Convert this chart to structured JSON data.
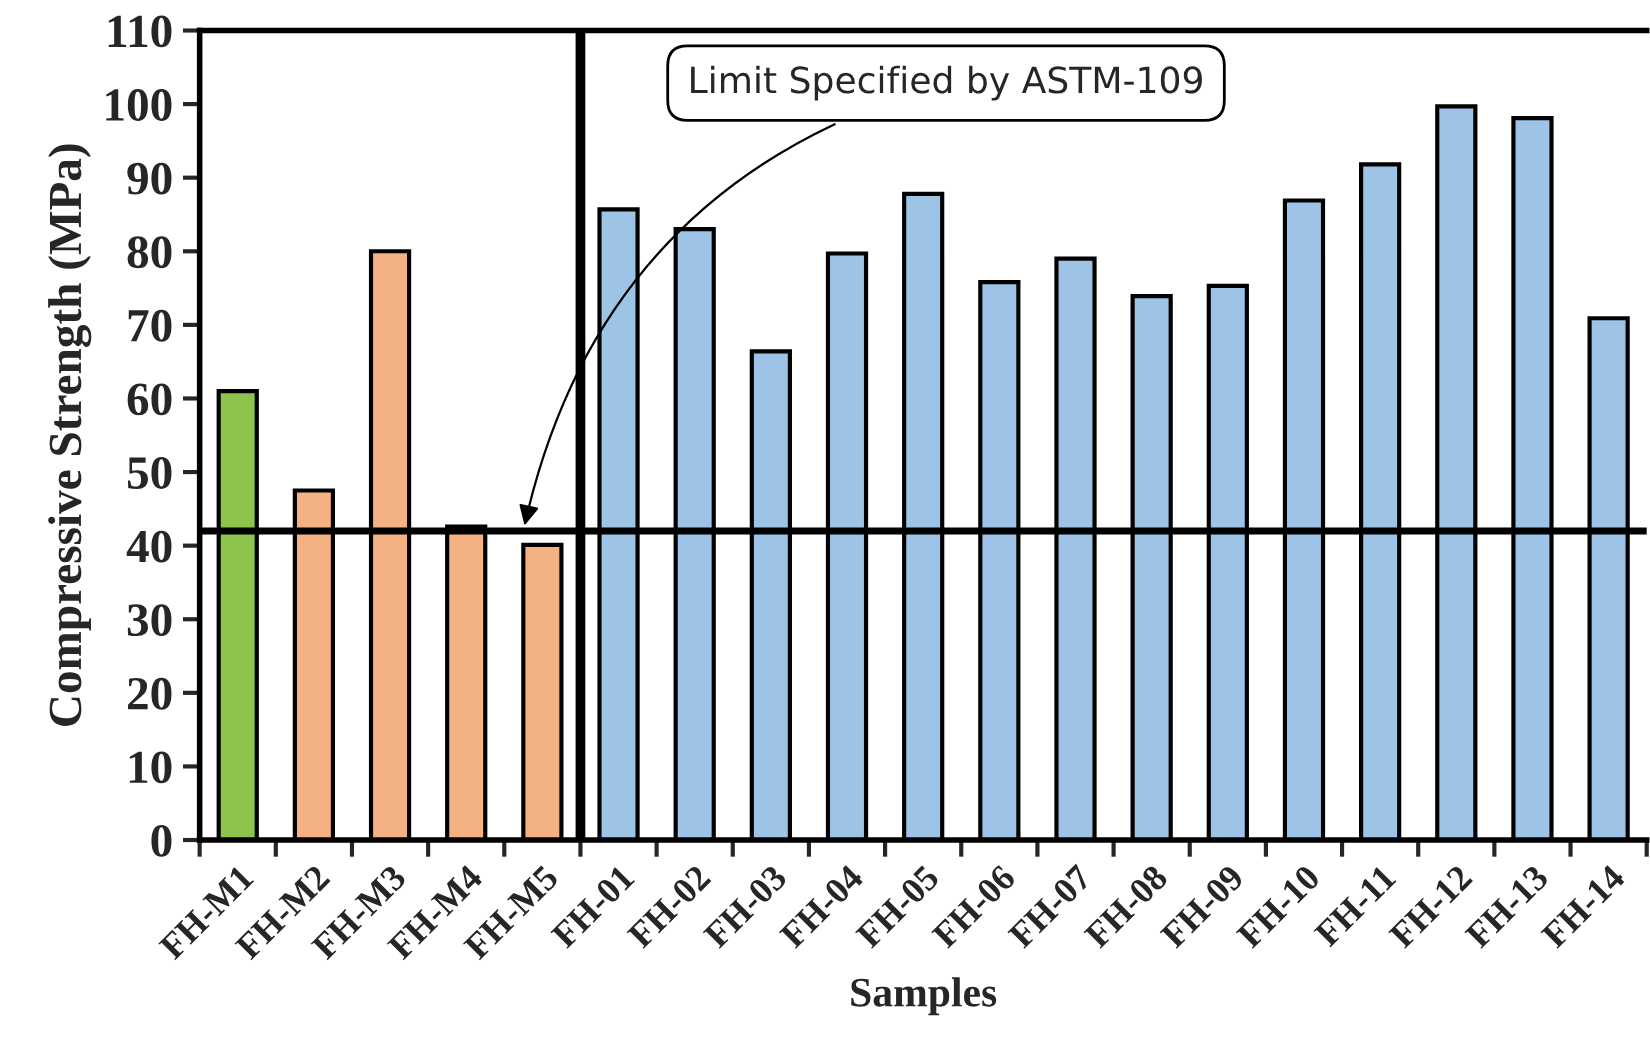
{
  "chart_data": {
    "type": "bar",
    "xlabel": "Samples",
    "ylabel": "Compressive Strength (MPa)",
    "categories": [
      "FH-M1",
      "FH-M2",
      "FH-M3",
      "FH-M4",
      "FH-M5",
      "FH-01",
      "FH-02",
      "FH-03",
      "FH-04",
      "FH-05",
      "FH-06",
      "FH-07",
      "FH-08",
      "FH-09",
      "FH-10",
      "FH-11",
      "FH-12",
      "FH-13",
      "FH-14"
    ],
    "values": [
      61,
      47.5,
      80,
      42.6,
      40.1,
      85.7,
      83,
      66.4,
      79.7,
      87.8,
      75.8,
      79,
      73.9,
      75.3,
      86.9,
      91.8,
      99.7,
      98.1,
      70.9
    ],
    "colors": [
      "#8dc44e",
      "#f4b183",
      "#f4b183",
      "#f4b183",
      "#f4b183",
      "#9dc3e6",
      "#9dc3e6",
      "#9dc3e6",
      "#9dc3e6",
      "#9dc3e6",
      "#9dc3e6",
      "#9dc3e6",
      "#9dc3e6",
      "#9dc3e6",
      "#9dc3e6",
      "#9dc3e6",
      "#9dc3e6",
      "#9dc3e6",
      "#9dc3e6"
    ],
    "ylim": [
      0,
      110
    ],
    "yticks": [
      0,
      10,
      20,
      30,
      40,
      50,
      60,
      70,
      80,
      90,
      100,
      110
    ],
    "ref_lines": [
      {
        "axis": "y",
        "value": 42,
        "label": "Limit Specified by ASTM-109",
        "color": "#000000"
      }
    ],
    "grid": false,
    "legend": false
  }
}
